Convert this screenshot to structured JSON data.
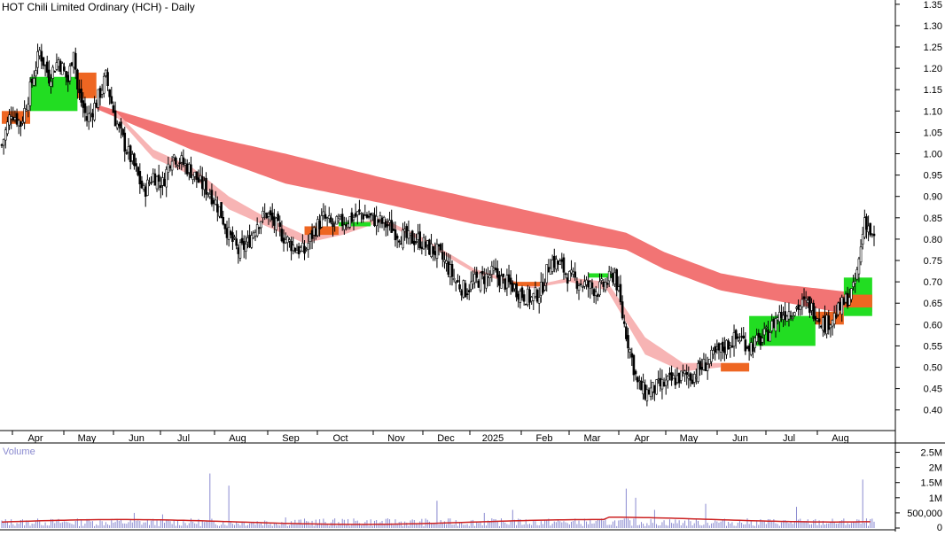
{
  "title": "HOT Chili Limited Ordinary (HCH) - Daily",
  "volume_label": "Volume",
  "colors": {
    "bull_ribbon": "#22dd22",
    "bear_ribbon": "#ee6622",
    "long_ribbon": "#f27474",
    "mid_ribbon": "#f7b4b4",
    "candle": "#000000",
    "volume_bar": "#8a8ad0",
    "volume_ma": "#cc2222"
  },
  "chart_data": {
    "type": "candlestick",
    "title": "HOT Chili Limited Ordinary (HCH) - Daily",
    "price_axis": {
      "ylim": [
        0.36,
        1.36
      ],
      "ticks": [
        "1.35",
        "1.30",
        "1.25",
        "1.20",
        "1.15",
        "1.10",
        "1.05",
        "1.00",
        "0.95",
        "0.90",
        "0.85",
        "0.80",
        "0.75",
        "0.70",
        "0.65",
        "0.60",
        "0.55",
        "0.50",
        "0.45",
        "0.40"
      ]
    },
    "x_axis": {
      "labels": [
        "Apr",
        "May",
        "Jun",
        "Jul",
        "Aug",
        "Sep",
        "Oct",
        "Nov",
        "Dec",
        "2025",
        "Feb",
        "Mar",
        "Apr",
        "May",
        "Jun",
        "Jul",
        "Aug"
      ]
    },
    "close_series": [
      [
        0,
        1.02
      ],
      [
        5,
        1.1
      ],
      [
        10,
        1.07
      ],
      [
        15,
        1.15
      ],
      [
        20,
        1.24
      ],
      [
        25,
        1.18
      ],
      [
        30,
        1.22
      ],
      [
        35,
        1.17
      ],
      [
        38,
        1.25
      ],
      [
        40,
        1.15
      ],
      [
        45,
        1.08
      ],
      [
        50,
        1.12
      ],
      [
        55,
        1.18
      ],
      [
        60,
        1.08
      ],
      [
        65,
        1.02
      ],
      [
        70,
        0.97
      ],
      [
        75,
        0.91
      ],
      [
        80,
        0.95
      ],
      [
        85,
        0.93
      ],
      [
        90,
        1.0
      ],
      [
        95,
        0.98
      ],
      [
        100,
        0.96
      ],
      [
        105,
        0.93
      ],
      [
        110,
        0.91
      ],
      [
        115,
        0.87
      ],
      [
        120,
        0.81
      ],
      [
        125,
        0.77
      ],
      [
        130,
        0.79
      ],
      [
        135,
        0.84
      ],
      [
        140,
        0.86
      ],
      [
        145,
        0.83
      ],
      [
        150,
        0.8
      ],
      [
        155,
        0.78
      ],
      [
        160,
        0.77
      ],
      [
        165,
        0.82
      ],
      [
        170,
        0.85
      ],
      [
        175,
        0.83
      ],
      [
        180,
        0.84
      ],
      [
        185,
        0.85
      ],
      [
        190,
        0.86
      ],
      [
        195,
        0.85
      ],
      [
        200,
        0.84
      ],
      [
        205,
        0.83
      ],
      [
        210,
        0.81
      ],
      [
        215,
        0.8
      ],
      [
        220,
        0.8
      ],
      [
        225,
        0.78
      ],
      [
        230,
        0.77
      ],
      [
        235,
        0.74
      ],
      [
        240,
        0.7
      ],
      [
        245,
        0.68
      ],
      [
        250,
        0.7
      ],
      [
        255,
        0.71
      ],
      [
        260,
        0.72
      ],
      [
        265,
        0.7
      ],
      [
        270,
        0.69
      ],
      [
        275,
        0.67
      ],
      [
        280,
        0.66
      ],
      [
        285,
        0.68
      ],
      [
        290,
        0.75
      ],
      [
        295,
        0.74
      ],
      [
        300,
        0.71
      ],
      [
        305,
        0.7
      ],
      [
        310,
        0.69
      ],
      [
        315,
        0.68
      ],
      [
        320,
        0.7
      ],
      [
        324,
        0.72
      ],
      [
        328,
        0.62
      ],
      [
        332,
        0.54
      ],
      [
        336,
        0.46
      ],
      [
        340,
        0.44
      ],
      [
        345,
        0.45
      ],
      [
        350,
        0.46
      ],
      [
        355,
        0.47
      ],
      [
        360,
        0.48
      ],
      [
        365,
        0.48
      ],
      [
        370,
        0.5
      ],
      [
        375,
        0.52
      ],
      [
        380,
        0.54
      ],
      [
        385,
        0.56
      ],
      [
        390,
        0.57
      ],
      [
        395,
        0.55
      ],
      [
        400,
        0.56
      ],
      [
        405,
        0.58
      ],
      [
        410,
        0.62
      ],
      [
        415,
        0.63
      ],
      [
        420,
        0.64
      ],
      [
        425,
        0.65
      ],
      [
        430,
        0.63
      ],
      [
        435,
        0.6
      ],
      [
        440,
        0.62
      ],
      [
        445,
        0.65
      ],
      [
        450,
        0.68
      ],
      [
        452,
        0.72
      ],
      [
        454,
        0.78
      ],
      [
        456,
        0.85
      ],
      [
        458,
        0.83
      ],
      [
        460,
        0.8
      ]
    ],
    "ribbon_long_top": [
      [
        50,
        1.115
      ],
      [
        100,
        1.05
      ],
      [
        150,
        1.0
      ],
      [
        200,
        0.945
      ],
      [
        250,
        0.895
      ],
      [
        300,
        0.845
      ],
      [
        330,
        0.815
      ],
      [
        350,
        0.77
      ],
      [
        380,
        0.72
      ],
      [
        410,
        0.695
      ],
      [
        440,
        0.68
      ],
      [
        460,
        0.67
      ]
    ],
    "ribbon_long_bottom": [
      [
        50,
        1.105
      ],
      [
        100,
        1.01
      ],
      [
        150,
        0.93
      ],
      [
        200,
        0.885
      ],
      [
        250,
        0.835
      ],
      [
        300,
        0.795
      ],
      [
        330,
        0.775
      ],
      [
        350,
        0.73
      ],
      [
        380,
        0.68
      ],
      [
        410,
        0.655
      ],
      [
        440,
        0.63
      ],
      [
        460,
        0.63
      ]
    ],
    "ribbon_mid_top": [
      [
        60,
        1.1
      ],
      [
        80,
        1.01
      ],
      [
        100,
        0.97
      ],
      [
        120,
        0.9
      ],
      [
        140,
        0.85
      ],
      [
        160,
        0.81
      ],
      [
        180,
        0.83
      ],
      [
        200,
        0.85
      ],
      [
        220,
        0.81
      ],
      [
        250,
        0.73
      ],
      [
        280,
        0.69
      ],
      [
        300,
        0.71
      ],
      [
        320,
        0.7
      ],
      [
        340,
        0.57
      ],
      [
        360,
        0.51
      ],
      [
        380,
        0.51
      ]
    ],
    "ribbon_mid_bottom": [
      [
        60,
        1.09
      ],
      [
        80,
        0.99
      ],
      [
        100,
        0.95
      ],
      [
        120,
        0.87
      ],
      [
        140,
        0.83
      ],
      [
        160,
        0.79
      ],
      [
        180,
        0.81
      ],
      [
        200,
        0.84
      ],
      [
        220,
        0.8
      ],
      [
        250,
        0.72
      ],
      [
        280,
        0.685
      ],
      [
        300,
        0.7
      ],
      [
        320,
        0.68
      ],
      [
        340,
        0.53
      ],
      [
        360,
        0.49
      ],
      [
        380,
        0.5
      ]
    ],
    "short_ribbon": [
      {
        "x0": 0,
        "x1": 15,
        "top": 1.1,
        "bottom": 1.07,
        "color": "bear"
      },
      {
        "x0": 15,
        "x1": 40,
        "top": 1.18,
        "bottom": 1.1,
        "color": "bull"
      },
      {
        "x0": 40,
        "x1": 50,
        "top": 1.19,
        "bottom": 1.13,
        "color": "bear"
      },
      {
        "x0": 160,
        "x1": 178,
        "top": 0.83,
        "bottom": 0.81,
        "color": "bear"
      },
      {
        "x0": 178,
        "x1": 195,
        "top": 0.84,
        "bottom": 0.83,
        "color": "bull"
      },
      {
        "x0": 270,
        "x1": 285,
        "top": 0.7,
        "bottom": 0.69,
        "color": "bear"
      },
      {
        "x0": 310,
        "x1": 325,
        "top": 0.72,
        "bottom": 0.71,
        "color": "bull"
      },
      {
        "x0": 380,
        "x1": 395,
        "top": 0.51,
        "bottom": 0.49,
        "color": "bear"
      },
      {
        "x0": 395,
        "x1": 430,
        "top": 0.62,
        "bottom": 0.55,
        "color": "bull"
      },
      {
        "x0": 430,
        "x1": 445,
        "top": 0.63,
        "bottom": 0.6,
        "color": "bear"
      },
      {
        "x0": 445,
        "x1": 460,
        "top": 0.71,
        "bottom": 0.62,
        "color": "bull"
      },
      {
        "x0": 445,
        "x1": 460,
        "top": 0.67,
        "bottom": 0.64,
        "color": "bear"
      }
    ],
    "volume_axis": {
      "ylim": [
        0,
        2750000
      ],
      "ticks": [
        "2.5M",
        "2M",
        "1.5M",
        "1M",
        "500,000",
        "0"
      ]
    },
    "volume_spikes": [
      [
        20,
        250000
      ],
      [
        45,
        300000
      ],
      [
        70,
        500000
      ],
      [
        85,
        450000
      ],
      [
        110,
        1800000
      ],
      [
        120,
        1400000
      ],
      [
        150,
        350000
      ],
      [
        180,
        300000
      ],
      [
        230,
        900000
      ],
      [
        255,
        500000
      ],
      [
        270,
        600000
      ],
      [
        330,
        1300000
      ],
      [
        335,
        1000000
      ],
      [
        345,
        600000
      ],
      [
        372,
        800000
      ],
      [
        420,
        700000
      ],
      [
        455,
        1600000
      ]
    ]
  }
}
